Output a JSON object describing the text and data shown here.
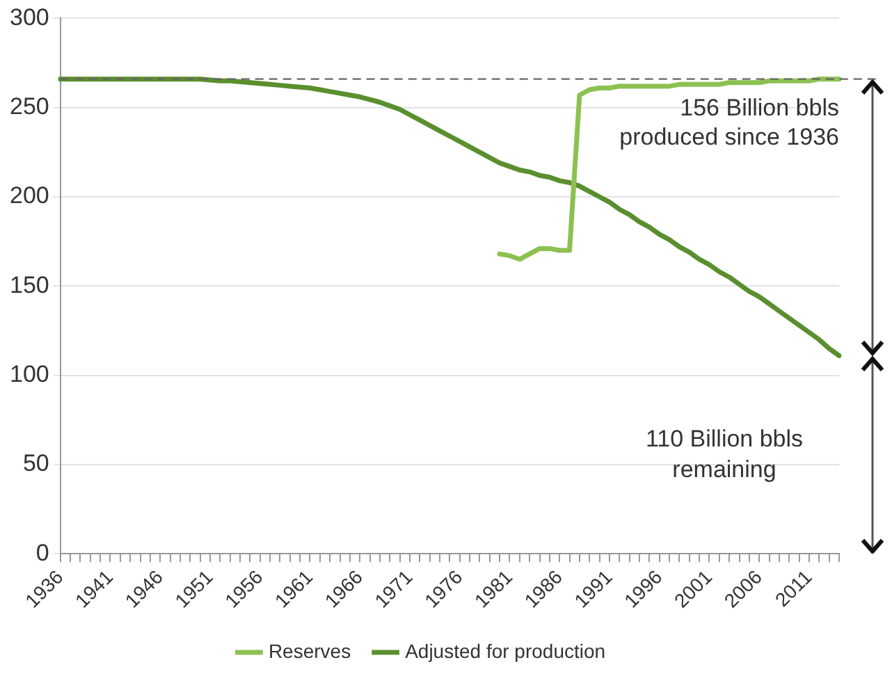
{
  "chart_data": {
    "type": "line",
    "categories": [
      "1936",
      null,
      null,
      null,
      null,
      "1941",
      null,
      null,
      null,
      null,
      "1946",
      null,
      null,
      null,
      null,
      "1951",
      null,
      null,
      null,
      null,
      "1956",
      null,
      null,
      null,
      null,
      "1961",
      null,
      null,
      null,
      null,
      "1966",
      null,
      null,
      null,
      null,
      "1971",
      null,
      null,
      null,
      null,
      "1976",
      null,
      null,
      null,
      null,
      "1981",
      null,
      null,
      null,
      null,
      "1986",
      null,
      null,
      null,
      null,
      "1991",
      null,
      null,
      null,
      null,
      "1996",
      null,
      null,
      null,
      null,
      "2001",
      null,
      null,
      null,
      null,
      "2006",
      null,
      null,
      null,
      null,
      "2011",
      null,
      null,
      null
    ],
    "series": [
      {
        "name": "Reserves",
        "color": "#8cc152",
        "values": [
          null,
          null,
          null,
          null,
          null,
          null,
          null,
          null,
          null,
          null,
          null,
          null,
          null,
          null,
          null,
          null,
          null,
          null,
          null,
          null,
          null,
          null,
          null,
          null,
          null,
          null,
          null,
          null,
          null,
          null,
          null,
          null,
          null,
          null,
          null,
          null,
          null,
          null,
          null,
          null,
          null,
          null,
          null,
          null,
          168,
          167,
          165,
          168,
          171,
          171,
          170,
          170,
          257,
          260,
          261,
          261,
          262,
          262,
          262,
          262,
          262,
          262,
          263,
          263,
          263,
          263,
          263,
          264,
          264,
          264,
          264,
          265,
          265,
          265,
          265,
          265,
          266,
          266,
          266
        ]
      },
      {
        "name": "Adjusted for production",
        "color": "#5a8f2e",
        "values": [
          266,
          266,
          266,
          266,
          266,
          266,
          266,
          266,
          266,
          266,
          266,
          266,
          266,
          266,
          266,
          265.5,
          265,
          265,
          264.5,
          264,
          263.5,
          263,
          262.5,
          262,
          261.5,
          261,
          260,
          259,
          258,
          257,
          256,
          254.5,
          253,
          251,
          249,
          246,
          243,
          240,
          237,
          234,
          231,
          228,
          225,
          222,
          219,
          217,
          215,
          214,
          212,
          211,
          209,
          208,
          206,
          203,
          200,
          197,
          193,
          190,
          186,
          183,
          179,
          176,
          172,
          169,
          165,
          162,
          158,
          155,
          151,
          147,
          144,
          140,
          136,
          132,
          128,
          124,
          120,
          115,
          111
        ]
      }
    ],
    "ylim": [
      0,
      300
    ],
    "yticks": [
      0,
      50,
      100,
      150,
      200,
      250,
      300
    ],
    "grid": "y",
    "legend": "bottom",
    "marker": "none",
    "line_style": "solid",
    "ref_lines": [
      {
        "axis": "y",
        "value": 266,
        "color": "#666666",
        "line_style": "dashed"
      }
    ],
    "annotations": [
      "156 Billion bbls produced since 1936",
      "110 Billion bbls remaining"
    ]
  }
}
